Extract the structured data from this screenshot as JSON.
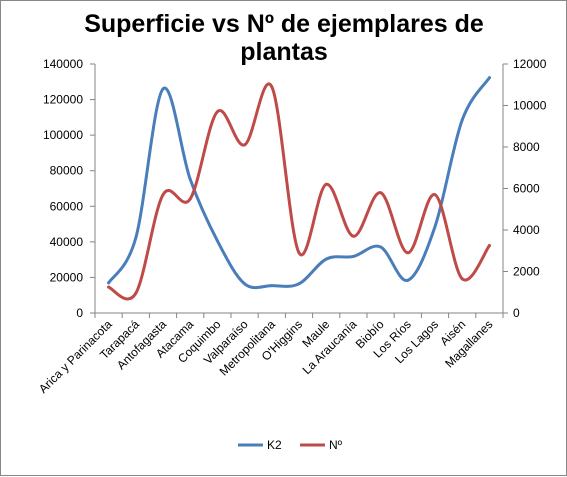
{
  "chart_data": {
    "type": "line",
    "title_lines": [
      "Superficie vs Nº de ejemplares de",
      "plantas"
    ],
    "categories": [
      "Arica y Parinacota",
      "Tarapacá",
      "Antofagasta",
      "Atacama",
      "Coquimbo",
      "Valparaíso",
      "Metropolitana",
      "O'Higgins",
      "Maule",
      "La Araucanía",
      "Biobío",
      "Los Ríos",
      "Los Lagos",
      "Aisén",
      "Magallanes"
    ],
    "series": [
      {
        "name": "K2",
        "axis": "left",
        "color": "#4a7ebb",
        "values": [
          16900,
          42200,
          126000,
          75200,
          40600,
          16400,
          15400,
          16400,
          30300,
          31800,
          37100,
          18400,
          48600,
          108500,
          132300
        ]
      },
      {
        "name": "Nº",
        "axis": "right",
        "color": "#be4b48",
        "values": [
          1250,
          950,
          5700,
          5500,
          9700,
          8100,
          10900,
          2900,
          6200,
          3700,
          5800,
          2900,
          5700,
          1650,
          3250
        ]
      }
    ],
    "y_left": {
      "ylim": [
        0,
        140000
      ],
      "ticks": [
        "0",
        "20000",
        "40000",
        "60000",
        "80000",
        "100000",
        "120000",
        "140000"
      ]
    },
    "y_right": {
      "ylim": [
        0,
        12000
      ],
      "ticks": [
        "0",
        "2000",
        "4000",
        "6000",
        "8000",
        "10000",
        "12000"
      ]
    },
    "grid": false,
    "legend_position": "bottom"
  }
}
